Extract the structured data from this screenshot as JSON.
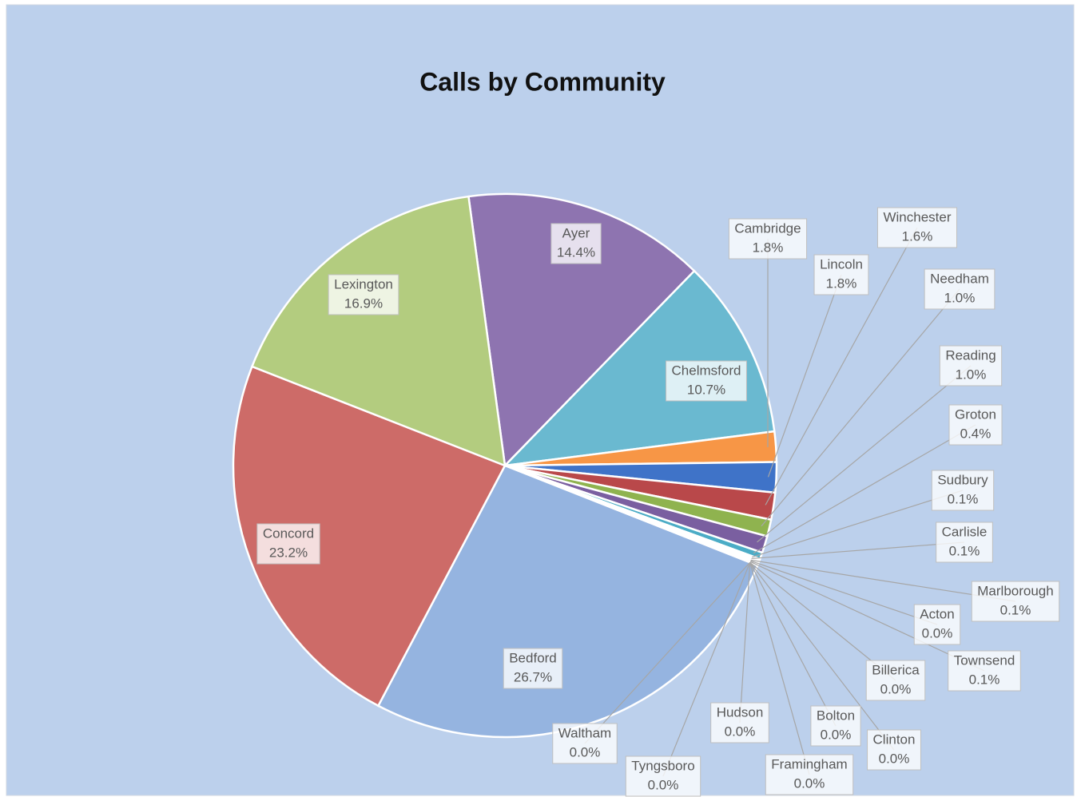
{
  "chart_data": {
    "type": "pie",
    "title": "Calls by Community",
    "categories": [
      "Ayer",
      "Chelmsford",
      "Cambridge",
      "Lincoln",
      "Winchester",
      "Needham",
      "Reading",
      "Groton",
      "Sudbury",
      "Carlisle",
      "Marlborough",
      "Acton",
      "Townsend",
      "Billerica",
      "Bolton",
      "Clinton",
      "Framingham",
      "Hudson",
      "Tyngsboro",
      "Waltham",
      "Bedford",
      "Concord",
      "Lexington"
    ],
    "values": [
      14.4,
      10.7,
      1.8,
      1.8,
      1.6,
      1.0,
      1.0,
      0.4,
      0.1,
      0.1,
      0.1,
      0.0,
      0.1,
      0.0,
      0.0,
      0.0,
      0.0,
      0.0,
      0.0,
      0.0,
      26.7,
      23.2,
      16.9
    ],
    "value_labels": [
      "14.4%",
      "10.7%",
      "1.8%",
      "1.8%",
      "1.6%",
      "1.0%",
      "1.0%",
      "0.4%",
      "0.1%",
      "0.1%",
      "0.1%",
      "0.0%",
      "0.1%",
      "0.0%",
      "0.0%",
      "0.0%",
      "0.0%",
      "0.0%",
      "0.0%",
      "0.0%",
      "26.7%",
      "23.2%",
      "16.9%"
    ],
    "colors": [
      "#8e74b0",
      "#6ab9d0",
      "#f79646",
      "#3f73c8",
      "#b9484a",
      "#8fb34f",
      "#7a5fa0",
      "#4bacc6",
      "#f79646",
      "#4f81bd",
      "#c0504d",
      "#9bbb59",
      "#8064a2",
      "#4bacc6",
      "#f79646",
      "#4f81bd",
      "#c0504d",
      "#9bbb59",
      "#8064a2",
      "#4bacc6",
      "#95b4e0",
      "#cd6b68",
      "#b3cc7f"
    ]
  }
}
